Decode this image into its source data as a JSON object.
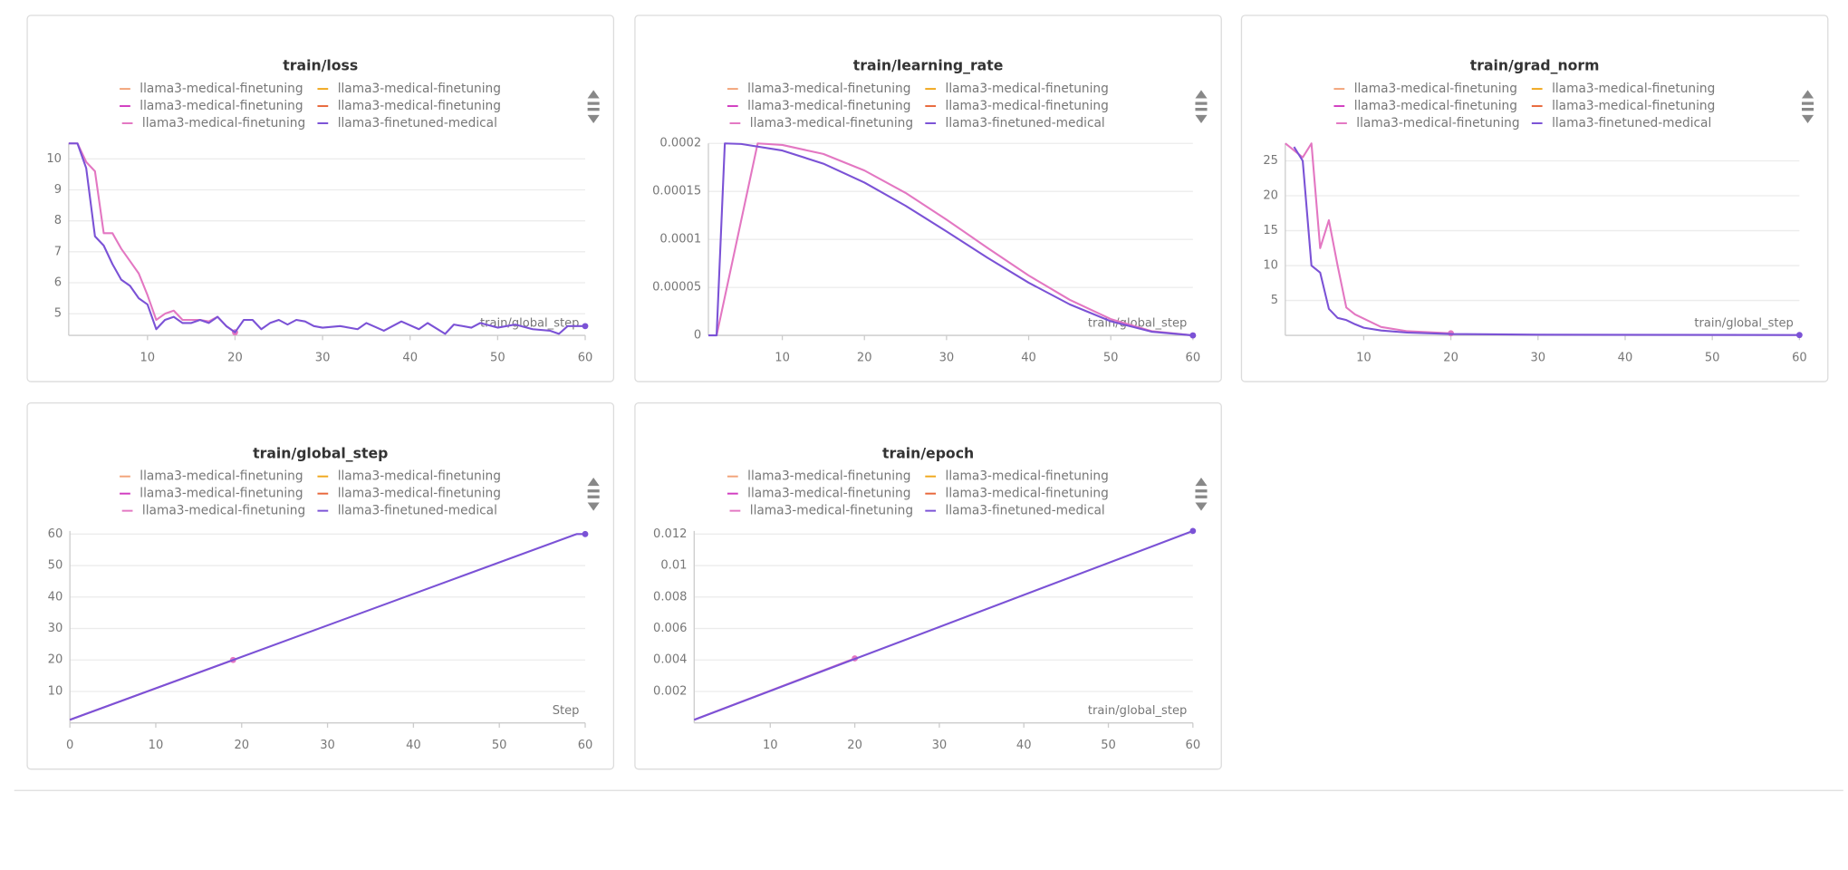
{
  "chart_data": [
    {
      "type": "line",
      "title": "train/loss",
      "x_label": "train/global_step",
      "xlim": [
        1,
        60
      ],
      "xticks": [
        10,
        20,
        30,
        40,
        50,
        60
      ],
      "ylim": [
        4.3,
        10.5
      ],
      "yticks": [
        5,
        6,
        7,
        8,
        9,
        10
      ],
      "grid": true,
      "series": [
        {
          "name": "llama3-medical-finetuning",
          "color": "#f2a47a",
          "x": [],
          "values": []
        },
        {
          "name": "llama3-medical-finetuning",
          "color": "#f0a81e",
          "x": [],
          "values": []
        },
        {
          "name": "llama3-medical-finetuning",
          "color": "#d13cc0",
          "x": [],
          "values": []
        },
        {
          "name": "llama3-medical-finetuning",
          "color": "#e8673a",
          "x": [],
          "values": []
        },
        {
          "name": "llama3-medical-finetuning",
          "color": "#e377c2",
          "x": [
            1,
            2,
            3,
            4,
            5,
            6,
            7,
            8,
            9,
            10,
            11,
            12,
            13,
            14,
            15,
            16,
            17,
            18,
            19,
            20
          ],
          "values": [
            10.5,
            10.5,
            9.9,
            9.6,
            7.6,
            7.6,
            7.1,
            6.7,
            6.3,
            5.6,
            4.8,
            5.0,
            5.1,
            4.8,
            4.8,
            4.8,
            4.75,
            4.9,
            4.6,
            4.4
          ]
        },
        {
          "name": "llama3-finetuned-medical",
          "color": "#7b52d6",
          "x": [
            1,
            2,
            3,
            4,
            5,
            6,
            7,
            8,
            9,
            10,
            11,
            12,
            13,
            14,
            15,
            16,
            17,
            18,
            19,
            20,
            21,
            22,
            23,
            24,
            25,
            26,
            27,
            28,
            29,
            30,
            32,
            34,
            35,
            37,
            39,
            41,
            42,
            44,
            45,
            47,
            48,
            50,
            52,
            54,
            56,
            57,
            58,
            60
          ],
          "values": [
            10.5,
            10.5,
            9.7,
            7.5,
            7.2,
            6.6,
            6.1,
            5.9,
            5.5,
            5.3,
            4.5,
            4.8,
            4.9,
            4.7,
            4.7,
            4.8,
            4.7,
            4.9,
            4.6,
            4.4,
            4.8,
            4.8,
            4.5,
            4.7,
            4.8,
            4.65,
            4.8,
            4.75,
            4.6,
            4.55,
            4.6,
            4.5,
            4.7,
            4.45,
            4.75,
            4.5,
            4.7,
            4.35,
            4.65,
            4.55,
            4.7,
            4.55,
            4.65,
            4.5,
            4.45,
            4.35,
            4.6,
            4.6
          ]
        }
      ]
    },
    {
      "type": "line",
      "title": "train/learning_rate",
      "x_label": "train/global_step",
      "xlim": [
        1,
        60
      ],
      "xticks": [
        10,
        20,
        30,
        40,
        50,
        60
      ],
      "ylim": [
        0,
        0.0002
      ],
      "yticks": [
        0,
        5e-05,
        0.0001,
        0.00015,
        0.0002
      ],
      "grid": true,
      "series": [
        {
          "name": "llama3-medical-finetuning",
          "color": "#f2a47a",
          "x": [],
          "values": []
        },
        {
          "name": "llama3-medical-finetuning",
          "color": "#f0a81e",
          "x": [],
          "values": []
        },
        {
          "name": "llama3-medical-finetuning",
          "color": "#d13cc0",
          "x": [],
          "values": []
        },
        {
          "name": "llama3-medical-finetuning",
          "color": "#e8673a",
          "x": [],
          "values": []
        },
        {
          "name": "llama3-medical-finetuning",
          "color": "#e377c2",
          "x": [
            2,
            7,
            10,
            15,
            20,
            25,
            30,
            35,
            40,
            45,
            50,
            55,
            60
          ],
          "values": [
            0,
            0.0002,
            0.0001984,
            0.000189,
            0.0001718,
            0.0001485,
            0.0001206,
            9.11e-05,
            6.24e-05,
            3.71e-05,
            1.7e-05,
            4.4e-06,
            0
          ]
        },
        {
          "name": "llama3-finetuned-medical",
          "color": "#7b52d6",
          "x": [
            1,
            2,
            3,
            5,
            10,
            15,
            20,
            25,
            30,
            35,
            40,
            45,
            50,
            55,
            60
          ],
          "values": [
            0,
            0,
            0.0002,
            0.0001994,
            0.0001926,
            0.0001789,
            0.0001592,
            0.0001351,
            0.0001083,
            8.08e-05,
            5.49e-05,
            3.23e-05,
            1.47e-05,
            3.8e-06,
            0
          ]
        }
      ]
    },
    {
      "type": "line",
      "title": "train/grad_norm",
      "x_label": "train/global_step",
      "xlim": [
        1,
        60
      ],
      "xticks": [
        10,
        20,
        30,
        40,
        50,
        60
      ],
      "ylim": [
        0,
        27.5
      ],
      "yticks": [
        5,
        10,
        15,
        20,
        25
      ],
      "grid": true,
      "series": [
        {
          "name": "llama3-medical-finetuning",
          "color": "#f2a47a",
          "x": [],
          "values": []
        },
        {
          "name": "llama3-medical-finetuning",
          "color": "#f0a81e",
          "x": [],
          "values": []
        },
        {
          "name": "llama3-medical-finetuning",
          "color": "#d13cc0",
          "x": [],
          "values": []
        },
        {
          "name": "llama3-medical-finetuning",
          "color": "#e8673a",
          "x": [],
          "values": []
        },
        {
          "name": "llama3-medical-finetuning",
          "color": "#e377c2",
          "x": [
            1,
            3,
            4,
            5,
            6,
            7,
            8,
            9,
            10,
            12,
            15,
            20
          ],
          "values": [
            27.5,
            25.5,
            27.5,
            12.5,
            16.5,
            10,
            4,
            3,
            2.4,
            1.2,
            0.6,
            0.3
          ]
        },
        {
          "name": "llama3-finetuned-medical",
          "color": "#7b52d6",
          "x": [
            2,
            3,
            4,
            5,
            6,
            7,
            8,
            9,
            10,
            12,
            15,
            20,
            30,
            60
          ],
          "values": [
            27,
            25,
            10,
            9,
            3.8,
            2.5,
            2.2,
            1.6,
            1.1,
            0.7,
            0.4,
            0.2,
            0.1,
            0.05
          ]
        }
      ]
    },
    {
      "type": "line",
      "title": "train/global_step",
      "x_label": "Step",
      "xlim": [
        0,
        60
      ],
      "xticks": [
        0,
        10,
        20,
        30,
        40,
        50,
        60
      ],
      "ylim": [
        0,
        61
      ],
      "yticks": [
        10,
        20,
        30,
        40,
        50,
        60
      ],
      "grid": true,
      "series": [
        {
          "name": "llama3-medical-finetuning",
          "color": "#f2a47a",
          "x": [],
          "values": []
        },
        {
          "name": "llama3-medical-finetuning",
          "color": "#f0a81e",
          "x": [],
          "values": []
        },
        {
          "name": "llama3-medical-finetuning",
          "color": "#d13cc0",
          "x": [],
          "values": []
        },
        {
          "name": "llama3-medical-finetuning",
          "color": "#e8673a",
          "x": [],
          "values": []
        },
        {
          "name": "llama3-medical-finetuning",
          "color": "#e377c2",
          "x": [
            0,
            19
          ],
          "values": [
            1,
            20
          ]
        },
        {
          "name": "llama3-finetuned-medical",
          "color": "#7b52d6",
          "x": [
            0,
            59,
            60
          ],
          "values": [
            1,
            60,
            60
          ]
        }
      ]
    },
    {
      "type": "line",
      "title": "train/epoch",
      "x_label": "train/global_step",
      "xlim": [
        1,
        60
      ],
      "xticks": [
        10,
        20,
        30,
        40,
        50,
        60
      ],
      "ylim": [
        0,
        0.0122
      ],
      "yticks": [
        0.002,
        0.004,
        0.006,
        0.008,
        0.01,
        0.012
      ],
      "grid": true,
      "series": [
        {
          "name": "llama3-medical-finetuning",
          "color": "#f2a47a",
          "x": [],
          "values": []
        },
        {
          "name": "llama3-medical-finetuning",
          "color": "#f0a81e",
          "x": [],
          "values": []
        },
        {
          "name": "llama3-medical-finetuning",
          "color": "#d13cc0",
          "x": [],
          "values": []
        },
        {
          "name": "llama3-medical-finetuning",
          "color": "#e8673a",
          "x": [],
          "values": []
        },
        {
          "name": "llama3-medical-finetuning",
          "color": "#e377c2",
          "x": [
            1,
            20
          ],
          "values": [
            0.0002,
            0.0041
          ]
        },
        {
          "name": "llama3-finetuned-medical",
          "color": "#7b52d6",
          "x": [
            1,
            60
          ],
          "values": [
            0.0002,
            0.0122
          ]
        }
      ]
    }
  ]
}
